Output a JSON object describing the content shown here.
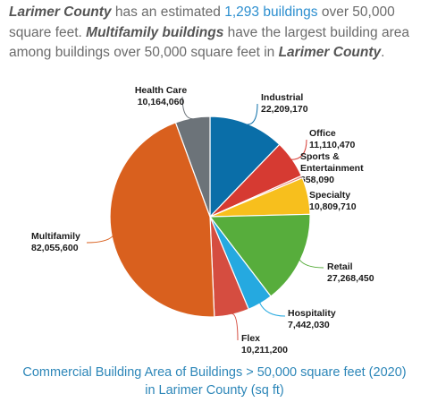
{
  "intro": {
    "county_1": "Larimer County",
    "t1": " has an estimated ",
    "count_text": "1,293 buildings",
    "t2": " over 50,000 square feet. ",
    "type_text": "Multifamily buildings",
    "t3": " have the largest building area among buildings over 50,000 square feet in ",
    "county_2": "Larimer County",
    "t4": "."
  },
  "caption": {
    "line1": "Commercial Building Area of Buildings > 50,000 square feet (2020)",
    "line2": "in Larimer County (sq ft)"
  },
  "chart_data": {
    "type": "pie",
    "title": "Commercial Building Area of Buildings > 50,000 square feet (2020) in Larimer County (sq ft)",
    "slices": [
      {
        "name": "Industrial",
        "value_label": "22,209,170",
        "value": 22209170,
        "color": "#0a6ea8"
      },
      {
        "name": "Office",
        "value_label": "11,110,470",
        "value": 11110470,
        "color": "#d63a32"
      },
      {
        "name": "Sports & Entertainment",
        "name_lines": [
          "Sports &",
          "Entertainment"
        ],
        "value_label": "658,090",
        "value": 658090,
        "color": "#e87f70"
      },
      {
        "name": "Specialty",
        "value_label": "10,809,710",
        "value": 10809710,
        "color": "#f7bf1d"
      },
      {
        "name": "Retail",
        "value_label": "27,268,450",
        "value": 27268450,
        "color": "#57ad3c"
      },
      {
        "name": "Hospitality",
        "value_label": "7,442,030",
        "value": 7442030,
        "color": "#25a9e0"
      },
      {
        "name": "Flex",
        "value_label": "10,211,200",
        "value": 10211200,
        "color": "#d54d40"
      },
      {
        "name": "Multifamily",
        "value_label": "82,055,600",
        "value": 82055600,
        "color": "#d9601e"
      },
      {
        "name": "Health Care",
        "value_label": "10,164,060",
        "value": 10164060,
        "color": "#6c7379"
      }
    ]
  }
}
